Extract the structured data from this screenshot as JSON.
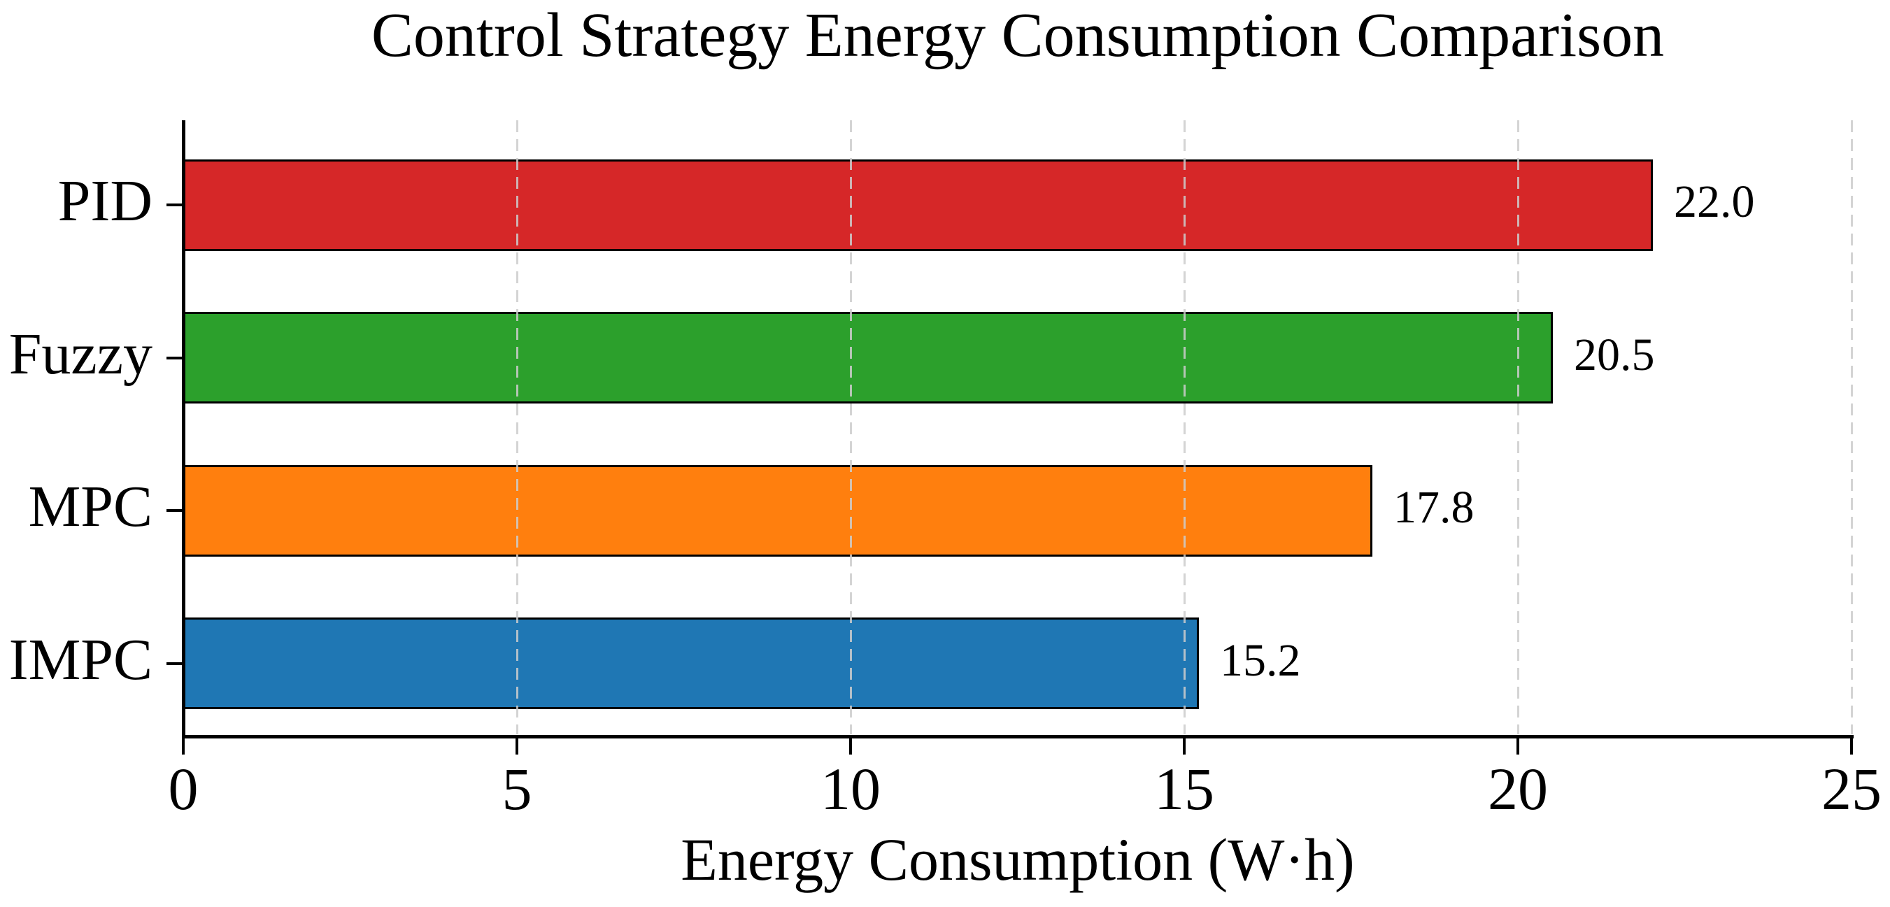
{
  "chart_data": {
    "type": "bar",
    "orientation": "horizontal",
    "title": "Control Strategy Energy Consumption Comparison",
    "xlabel": "Energy Consumption (W·h)",
    "ylabel": "",
    "categories": [
      "PID",
      "Fuzzy",
      "MPC",
      "IMPC"
    ],
    "values": [
      22.0,
      20.5,
      17.8,
      15.2
    ],
    "value_labels": [
      "22.0",
      "20.5",
      "17.8",
      "15.2"
    ],
    "bar_colors": [
      "#d62728",
      "#2ca02c",
      "#ff7f0e",
      "#1f77b4"
    ],
    "bar_edge_color": "#000000",
    "xlim": [
      0,
      25
    ],
    "xticks": [
      0,
      5,
      10,
      15,
      20,
      25
    ],
    "xtick_labels": [
      "0",
      "5",
      "10",
      "15",
      "20",
      "25"
    ],
    "grid": "vertical dashed, drawn over bars",
    "grid_color": "#d0d0d0",
    "axis_color": "#000000",
    "background_color": "#ffffff",
    "legend": "none"
  }
}
